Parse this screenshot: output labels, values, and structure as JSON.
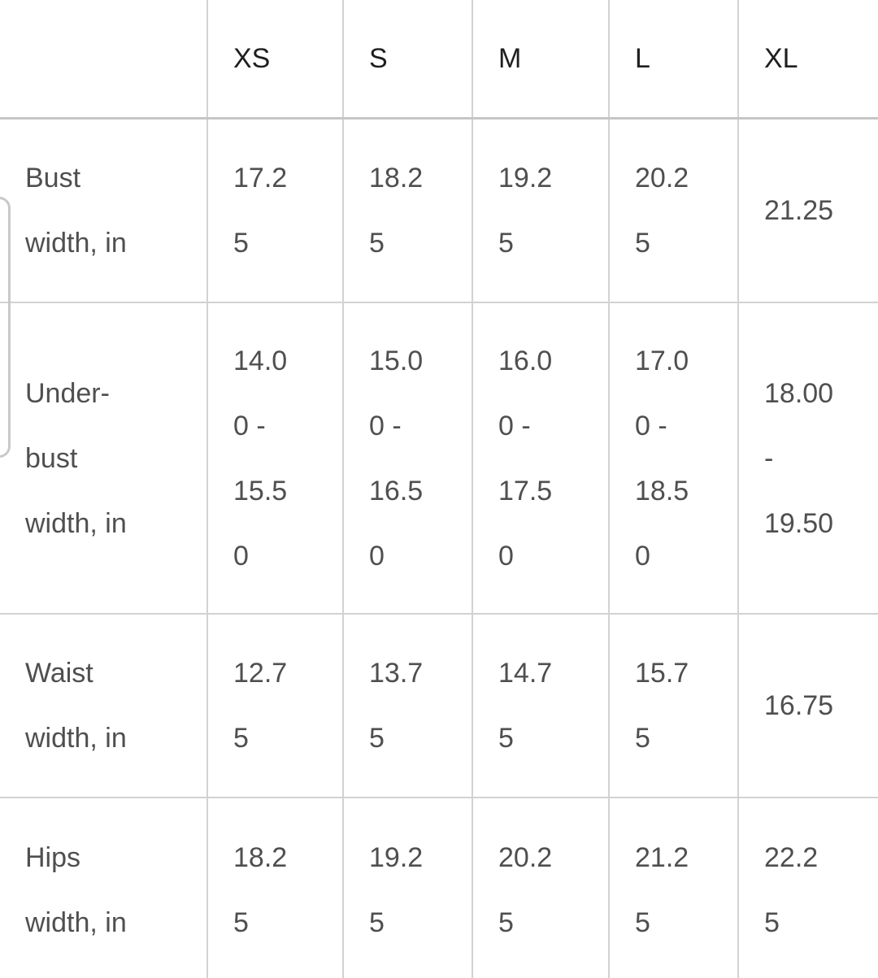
{
  "colors": {
    "header_text": "#1f1f1f",
    "body_text": "#4f4f4f",
    "grid_line": "#d2d2d2",
    "header_separator": "#c6c6c6"
  },
  "size_chart": {
    "corner_label": "",
    "columns": [
      "XS",
      "S",
      "M",
      "L",
      "XL"
    ],
    "rows": [
      {
        "label": "Bust width, in",
        "label_display": "Bust\nwidth, in",
        "values": [
          "17.25",
          "18.25",
          "19.25",
          "20.25",
          "21.25"
        ],
        "values_display": [
          "17.2\n5",
          "18.2\n5",
          "19.2\n5",
          "20.2\n5",
          "21.25"
        ]
      },
      {
        "label": "Under-bust width, in",
        "label_display": "Under-\nbust\nwidth, in",
        "values": [
          "14.00 - 15.50",
          "15.00 - 16.50",
          "16.00 - 17.50",
          "17.00 - 18.50",
          "18.00 - 19.50"
        ],
        "values_display": [
          "14.0\n0 -\n15.5\n0",
          "15.0\n0 -\n16.5\n0",
          "16.0\n0 -\n17.5\n0",
          "17.0\n0 -\n18.5\n0",
          "18.00\n-\n19.50"
        ]
      },
      {
        "label": "Waist width, in",
        "label_display": "Waist\nwidth, in",
        "values": [
          "12.75",
          "13.75",
          "14.75",
          "15.75",
          "16.75"
        ],
        "values_display": [
          "12.7\n5",
          "13.7\n5",
          "14.7\n5",
          "15.7\n5",
          "16.75"
        ]
      },
      {
        "label": "Hips width, in",
        "label_display": "Hips\nwidth, in",
        "values": [
          "18.25",
          "19.25",
          "20.25",
          "21.25",
          "22.25"
        ],
        "values_display": [
          "18.2\n5",
          "19.2\n5",
          "20.2\n5",
          "21.2\n5",
          "22.2\n5"
        ]
      }
    ]
  }
}
